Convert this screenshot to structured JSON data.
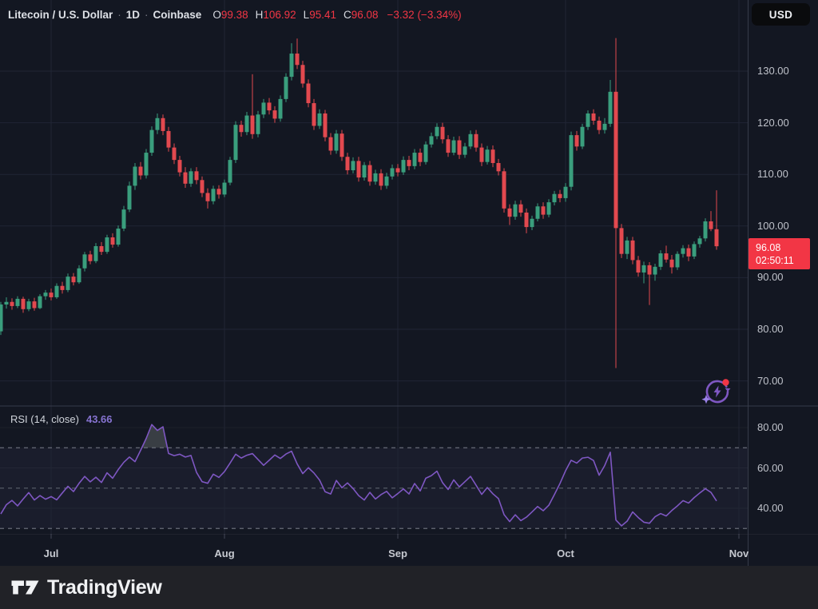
{
  "header": {
    "symbol_title": "Litecoin / U.S. Dollar",
    "sep": "·",
    "interval": "1D",
    "exchange": "Coinbase",
    "ohlc": {
      "o_label": "O",
      "o": "99.38",
      "h_label": "H",
      "h": "106.92",
      "l_label": "L",
      "l": "95.41",
      "c_label": "C",
      "c": "96.08",
      "change": "−3.32 (−3.34%)"
    },
    "currency_button_label": "USD"
  },
  "price_label": {
    "price": "96.08",
    "countdown": "02:50:11"
  },
  "rsi_legend": {
    "title": "RSI (14, close)",
    "value": "43.66"
  },
  "footer": {
    "brand": "TradingView"
  },
  "colors": {
    "background": "#131722",
    "up": "#3a9e7d",
    "down": "#e2494f",
    "accent_red": "#f23645",
    "rsi_purple": "#7e57c2",
    "axis_text": "#bfc2ca",
    "grid": "#202534",
    "panel_divider": "#363b49",
    "band_tint": "rgba(134,110,190,0.07)",
    "over70_fill": "rgba(170,180,170,0.25)",
    "footer_bg": "#212227"
  },
  "chart_data": {
    "type": "candlestick",
    "title": "Litecoin / U.S. Dollar · 1D · Coinbase",
    "legend_position": "top-left",
    "grid": true,
    "price_axis": {
      "labels": [
        "130.00",
        "120.00",
        "110.00",
        "100.00",
        "90.00",
        "80.00",
        "70.00"
      ],
      "values": [
        130,
        120,
        110,
        100,
        90,
        80,
        70
      ],
      "range": [
        66,
        138
      ]
    },
    "rsi_axis": {
      "labels": [
        "80.00",
        "60.00",
        "40.00"
      ],
      "values": [
        80,
        60,
        40
      ],
      "range": [
        27,
        86
      ]
    },
    "time_axis": {
      "months": [
        {
          "label": "Jul",
          "index": 9
        },
        {
          "label": "Aug",
          "index": 40
        },
        {
          "label": "Sep",
          "index": 71
        },
        {
          "label": "Oct",
          "index": 101
        },
        {
          "label": "Nov",
          "index": 132
        }
      ]
    },
    "last_price": 96.08,
    "candles": [
      [
        79.6,
        85.3,
        78.9,
        84.8
      ],
      [
        84.8,
        86.2,
        84.0,
        85.3
      ],
      [
        85.3,
        86.0,
        83.8,
        84.5
      ],
      [
        84.5,
        86.4,
        84.1,
        85.9
      ],
      [
        85.9,
        86.3,
        83.2,
        83.9
      ],
      [
        83.9,
        85.9,
        83.5,
        85.4
      ],
      [
        85.4,
        86.1,
        83.6,
        84.1
      ],
      [
        84.1,
        86.8,
        83.9,
        86.4
      ],
      [
        86.4,
        87.6,
        85.7,
        87.1
      ],
      [
        87.1,
        87.9,
        85.6,
        86.2
      ],
      [
        86.2,
        88.9,
        85.9,
        88.4
      ],
      [
        88.4,
        89.2,
        86.9,
        87.6
      ],
      [
        87.6,
        90.8,
        87.2,
        90.2
      ],
      [
        90.2,
        90.9,
        88.5,
        89.1
      ],
      [
        89.1,
        92.4,
        88.8,
        91.8
      ],
      [
        91.8,
        95.0,
        91.2,
        94.5
      ],
      [
        94.5,
        95.2,
        92.6,
        93.2
      ],
      [
        93.2,
        96.7,
        92.8,
        96.1
      ],
      [
        96.1,
        96.9,
        94.4,
        95.0
      ],
      [
        95.0,
        98.3,
        94.6,
        97.8
      ],
      [
        97.8,
        98.6,
        95.8,
        96.4
      ],
      [
        96.4,
        100.1,
        96.0,
        99.5
      ],
      [
        99.5,
        103.9,
        99.0,
        103.2
      ],
      [
        103.2,
        108.6,
        102.7,
        107.8
      ],
      [
        107.8,
        112.2,
        107.0,
        111.5
      ],
      [
        111.5,
        112.4,
        109.0,
        109.8
      ],
      [
        109.8,
        114.9,
        109.2,
        114.2
      ],
      [
        114.2,
        119.3,
        113.6,
        118.6
      ],
      [
        118.6,
        121.8,
        117.8,
        120.9
      ],
      [
        120.9,
        121.6,
        117.6,
        118.4
      ],
      [
        118.4,
        119.2,
        114.4,
        115.2
      ],
      [
        115.2,
        116.0,
        112.0,
        112.8
      ],
      [
        112.8,
        113.6,
        109.6,
        110.4
      ],
      [
        110.4,
        111.4,
        107.4,
        108.2
      ],
      [
        108.2,
        111.2,
        107.6,
        110.6
      ],
      [
        110.6,
        111.4,
        108.1,
        108.9
      ],
      [
        108.9,
        109.6,
        105.6,
        106.4
      ],
      [
        106.4,
        107.3,
        103.4,
        104.8
      ],
      [
        104.8,
        107.8,
        104.2,
        107.2
      ],
      [
        107.2,
        107.9,
        105.3,
        106.1
      ],
      [
        106.1,
        109.0,
        105.6,
        108.4
      ],
      [
        108.4,
        113.4,
        107.9,
        112.8
      ],
      [
        112.8,
        120.3,
        112.2,
        119.6
      ],
      [
        119.6,
        120.4,
        117.3,
        118.2
      ],
      [
        118.2,
        122.1,
        117.6,
        121.4
      ],
      [
        121.4,
        129.4,
        116.9,
        117.8
      ],
      [
        117.8,
        122.3,
        117.2,
        121.6
      ],
      [
        121.6,
        124.6,
        120.9,
        123.9
      ],
      [
        123.9,
        124.8,
        121.6,
        122.4
      ],
      [
        122.4,
        123.2,
        120.0,
        120.8
      ],
      [
        120.8,
        125.3,
        120.2,
        124.6
      ],
      [
        124.6,
        129.6,
        124.0,
        128.9
      ],
      [
        128.9,
        135.4,
        128.2,
        133.4
      ],
      [
        133.4,
        136.3,
        130.4,
        131.2
      ],
      [
        131.2,
        132.0,
        126.8,
        127.6
      ],
      [
        127.6,
        128.4,
        123.0,
        123.8
      ],
      [
        123.8,
        124.6,
        118.6,
        119.4
      ],
      [
        119.4,
        122.6,
        118.8,
        121.8
      ],
      [
        121.8,
        122.5,
        116.4,
        117.2
      ],
      [
        117.2,
        118.0,
        113.8,
        114.6
      ],
      [
        114.6,
        118.6,
        114.0,
        117.9
      ],
      [
        117.9,
        118.6,
        112.6,
        113.4
      ],
      [
        113.4,
        114.2,
        110.0,
        110.8
      ],
      [
        110.8,
        113.3,
        110.2,
        112.6
      ],
      [
        112.6,
        113.4,
        108.6,
        109.4
      ],
      [
        109.4,
        112.4,
        108.8,
        111.8
      ],
      [
        111.8,
        112.6,
        107.8,
        108.6
      ],
      [
        108.6,
        110.9,
        108.0,
        110.2
      ],
      [
        110.2,
        111.0,
        107.0,
        107.8
      ],
      [
        107.8,
        110.3,
        107.2,
        109.6
      ],
      [
        109.6,
        111.9,
        109.0,
        111.2
      ],
      [
        111.2,
        112.0,
        109.6,
        110.4
      ],
      [
        110.4,
        113.5,
        109.9,
        112.8
      ],
      [
        112.8,
        113.6,
        110.8,
        111.6
      ],
      [
        111.6,
        114.9,
        111.0,
        114.2
      ],
      [
        114.2,
        115.0,
        111.6,
        112.4
      ],
      [
        112.4,
        116.4,
        111.9,
        115.8
      ],
      [
        115.8,
        118.1,
        115.2,
        117.4
      ],
      [
        117.4,
        119.9,
        116.8,
        119.2
      ],
      [
        119.2,
        120.0,
        116.0,
        116.8
      ],
      [
        116.8,
        117.6,
        113.4,
        114.2
      ],
      [
        114.2,
        117.3,
        113.7,
        116.6
      ],
      [
        116.6,
        117.4,
        113.0,
        113.8
      ],
      [
        113.8,
        116.1,
        113.2,
        115.4
      ],
      [
        115.4,
        118.5,
        114.9,
        117.8
      ],
      [
        117.8,
        118.6,
        114.4,
        115.2
      ],
      [
        115.2,
        116.0,
        111.6,
        112.4
      ],
      [
        112.4,
        115.5,
        111.9,
        114.8
      ],
      [
        114.8,
        115.6,
        111.4,
        112.2
      ],
      [
        112.2,
        113.0,
        109.8,
        110.6
      ],
      [
        110.6,
        111.2,
        102.6,
        103.4
      ],
      [
        103.4,
        104.2,
        100.2,
        101.8
      ],
      [
        101.8,
        104.9,
        101.2,
        104.2
      ],
      [
        104.2,
        105.0,
        101.8,
        102.6
      ],
      [
        102.6,
        103.4,
        98.6,
        99.8
      ],
      [
        99.8,
        102.0,
        99.2,
        101.4
      ],
      [
        101.4,
        104.4,
        100.9,
        103.8
      ],
      [
        103.8,
        104.6,
        101.4,
        102.2
      ],
      [
        102.2,
        105.2,
        101.7,
        104.6
      ],
      [
        104.6,
        106.8,
        104.0,
        106.2
      ],
      [
        106.2,
        107.0,
        104.6,
        105.4
      ],
      [
        105.4,
        108.3,
        104.7,
        107.6
      ],
      [
        107.6,
        118.3,
        106.9,
        117.6
      ],
      [
        117.6,
        118.4,
        114.6,
        115.4
      ],
      [
        115.4,
        119.8,
        114.9,
        119.2
      ],
      [
        119.2,
        122.4,
        118.6,
        121.8
      ],
      [
        121.8,
        122.6,
        119.6,
        120.4
      ],
      [
        120.4,
        121.2,
        117.8,
        118.6
      ],
      [
        118.6,
        120.9,
        117.9,
        119.8
      ],
      [
        119.8,
        128.3,
        119.2,
        126.0
      ],
      [
        126.0,
        136.4,
        72.5,
        99.6
      ],
      [
        99.6,
        100.4,
        93.8,
        94.6
      ],
      [
        94.6,
        97.9,
        93.6,
        97.2
      ],
      [
        97.2,
        97.9,
        92.6,
        93.4
      ],
      [
        93.4,
        94.2,
        90.2,
        91.0
      ],
      [
        91.0,
        93.1,
        88.9,
        92.4
      ],
      [
        92.4,
        93.0,
        84.7,
        90.6
      ],
      [
        90.6,
        92.7,
        89.4,
        92.1
      ],
      [
        92.1,
        95.3,
        91.5,
        94.7
      ],
      [
        94.7,
        96.2,
        92.9,
        93.5
      ],
      [
        93.5,
        94.4,
        90.8,
        92.0
      ],
      [
        92.0,
        95.1,
        91.5,
        94.6
      ],
      [
        94.6,
        96.3,
        93.9,
        95.7
      ],
      [
        95.7,
        96.4,
        93.2,
        94.1
      ],
      [
        94.1,
        97.0,
        93.6,
        96.5
      ],
      [
        96.5,
        98.1,
        95.8,
        97.6
      ],
      [
        97.6,
        101.5,
        97.0,
        100.9
      ],
      [
        100.9,
        102.9,
        99.0,
        99.4
      ],
      [
        99.38,
        106.92,
        95.41,
        96.08
      ]
    ],
    "rsi": {
      "label": "RSI (14, close)",
      "last_value": 43.66,
      "bands": {
        "upper": 70,
        "middle": 50,
        "lower": 30
      },
      "values": [
        37.2,
        41.8,
        43.9,
        41.2,
        44.6,
        47.8,
        44.1,
        46.3,
        44.5,
        45.8,
        44.2,
        47.6,
        50.9,
        48.3,
        52.4,
        55.8,
        53.1,
        55.4,
        52.8,
        57.6,
        54.9,
        59.2,
        62.8,
        65.4,
        63.1,
        68.7,
        74.6,
        81.5,
        78.6,
        80.4,
        67.2,
        66.1,
        66.8,
        65.4,
        66.2,
        57.8,
        53.2,
        52.4,
        56.9,
        55.3,
        58.2,
        62.4,
        66.8,
        64.9,
        66.3,
        67.1,
        64.2,
        61.3,
        63.8,
        66.4,
        64.7,
        66.9,
        68.3,
        62.0,
        57.2,
        60.1,
        57.5,
        54.0,
        48.2,
        47.1,
        53.8,
        50.2,
        52.6,
        49.8,
        46.3,
        44.1,
        47.9,
        44.6,
        46.8,
        48.4,
        45.2,
        47.3,
        49.6,
        47.1,
        52.3,
        48.6,
        54.9,
        56.2,
        58.4,
        52.7,
        49.3,
        54.1,
        50.6,
        53.2,
        55.8,
        51.4,
        46.9,
        50.3,
        47.2,
        44.8,
        36.9,
        33.4,
        36.8,
        33.9,
        35.6,
        38.2,
        40.9,
        38.8,
        41.5,
        46.8,
        52.3,
        58.6,
        63.8,
        62.4,
        64.9,
        65.3,
        63.7,
        56.4,
        61.2,
        67.8,
        34.2,
        31.3,
        33.6,
        38.2,
        35.4,
        33.1,
        32.6,
        35.8,
        37.4,
        36.2,
        38.9,
        41.2,
        43.8,
        42.6,
        45.3,
        47.6,
        49.7,
        47.9,
        43.66
      ]
    }
  }
}
